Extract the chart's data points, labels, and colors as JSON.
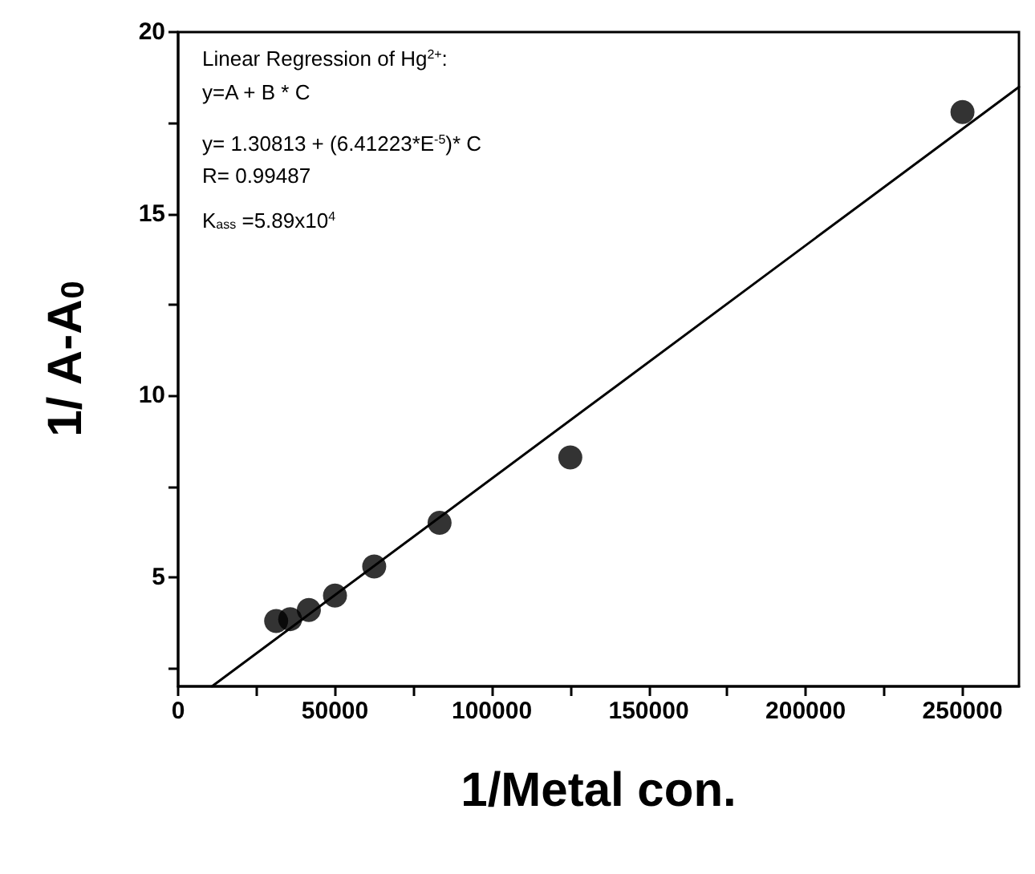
{
  "chart_data": {
    "type": "scatter",
    "xlabel": "1/Metal con.",
    "ylabel": "1/ A-A$_{0}$",
    "x": [
      31250,
      35714,
      41667,
      50000,
      62500,
      83333,
      125000,
      250000
    ],
    "series": [
      {
        "color": "#000000",
        "marker": "circle",
        "values": [
          3.8,
          3.85,
          4.1,
          4.5,
          5.3,
          6.5,
          8.3,
          17.8
        ]
      },
      {
        "type": "line",
        "color": "#000000",
        "marker": "none",
        "x": [
          10790,
          268000
        ],
        "values": [
          2.0,
          18.49
        ]
      }
    ],
    "xlim": [
      0,
      268000
    ],
    "ylim": [
      2,
      20
    ],
    "xticks": [
      0,
      {
        "value": 25000,
        "label": null
      },
      50000,
      {
        "value": 75000,
        "label": null
      },
      100000,
      {
        "value": 125000,
        "label": null
      },
      150000,
      {
        "value": 175000,
        "label": null
      },
      200000,
      {
        "value": 225000,
        "label": null
      },
      250000
    ],
    "yticks": [
      {
        "value": 2.5,
        "label": null
      },
      5,
      {
        "value": 7.5,
        "label": null
      },
      10,
      {
        "value": 12.5,
        "label": null
      },
      15,
      {
        "value": 17.5,
        "label": null
      },
      20
    ],
    "grid": false,
    "annotations": [
      "Linear Regression of Hg$^{2+}$:",
      "y=A + B * C",
      "y= 1.30813 + (6.41223*E$^{-5}$)* C",
      "R= 0.99487",
      "K$_{ass}$ =5.89x10$^{4}$"
    ]
  }
}
